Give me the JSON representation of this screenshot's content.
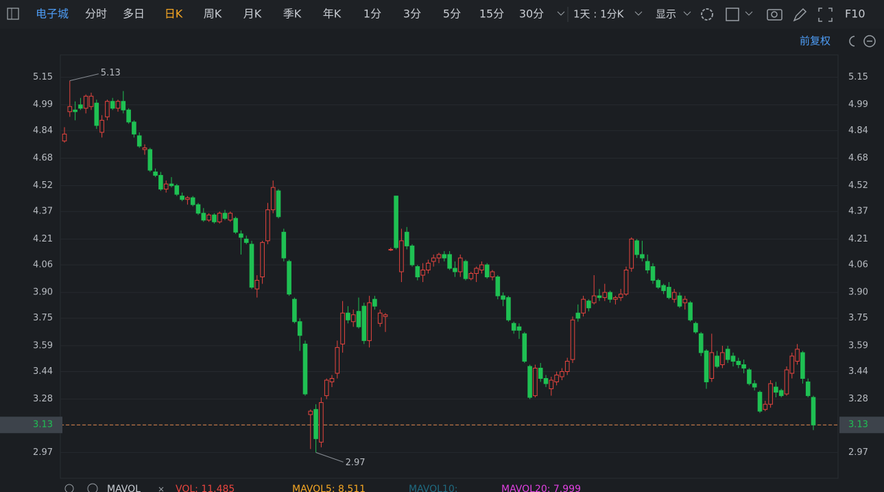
{
  "toolbar": {
    "stock": "电子城",
    "periods": [
      "分时",
      "多日",
      "日K",
      "周K",
      "月K",
      "季K",
      "年K",
      "1分",
      "3分",
      "5分",
      "15分",
      "30分"
    ],
    "active_period": 2,
    "interval": "1天 : 1分K",
    "display": "显示",
    "f10": "F10"
  },
  "adjust": "前复权",
  "chart_data": {
    "type": "candlestick",
    "ylim": [
      2.82,
      5.28
    ],
    "yticks": [
      5.15,
      4.99,
      4.84,
      4.68,
      4.52,
      4.37,
      4.21,
      4.06,
      {
        "value": 3.9,
        "label": "3.90"
      },
      3.75,
      3.59,
      3.44,
      3.28,
      3.13,
      2.97
    ],
    "grid": true,
    "up_color": "#e9453f",
    "down_color": "#1fc053",
    "max_label": 5.13,
    "min_label": 2.97,
    "last_price": 3.13,
    "candles": [
      [
        4.78,
        4.86,
        4.77,
        4.82
      ],
      [
        4.95,
        5.13,
        4.92,
        4.98
      ],
      [
        4.96,
        5.01,
        4.9,
        4.95
      ],
      [
        4.99,
        5.03,
        4.96,
        4.97
      ],
      [
        4.97,
        5.05,
        4.94,
        5.04
      ],
      [
        4.98,
        5.06,
        4.96,
        5.04
      ],
      [
        5.0,
        5.02,
        4.85,
        4.87
      ],
      [
        4.83,
        4.93,
        4.8,
        4.9
      ],
      [
        4.92,
        5.02,
        4.9,
        5.01
      ],
      [
        5.01,
        5.03,
        4.96,
        4.97
      ],
      [
        4.97,
        5.02,
        4.95,
        5.01
      ],
      [
        5.01,
        5.07,
        4.94,
        4.96
      ],
      [
        4.96,
        4.97,
        4.88,
        4.89
      ],
      [
        4.89,
        4.9,
        4.8,
        4.82
      ],
      [
        4.81,
        4.83,
        4.74,
        4.75
      ],
      [
        4.73,
        4.76,
        4.7,
        4.74
      ],
      [
        4.73,
        4.74,
        4.6,
        4.61
      ],
      [
        4.6,
        4.62,
        4.57,
        4.58
      ],
      [
        4.58,
        4.6,
        4.49,
        4.5
      ],
      [
        4.5,
        4.55,
        4.48,
        4.53
      ],
      [
        4.53,
        4.57,
        4.51,
        4.52
      ],
      [
        4.52,
        4.53,
        4.46,
        4.47
      ],
      [
        4.46,
        4.48,
        4.43,
        4.44
      ],
      [
        4.44,
        4.46,
        4.41,
        4.45
      ],
      [
        4.45,
        4.46,
        4.4,
        4.41
      ],
      [
        4.41,
        4.42,
        4.35,
        4.36
      ],
      [
        4.36,
        4.39,
        4.31,
        4.32
      ],
      [
        4.32,
        4.36,
        4.31,
        4.35
      ],
      [
        4.35,
        4.36,
        4.3,
        4.31
      ],
      [
        4.31,
        4.37,
        4.3,
        4.36
      ],
      [
        4.36,
        4.38,
        4.32,
        4.33
      ],
      [
        4.32,
        4.37,
        4.31,
        4.36
      ],
      [
        4.33,
        4.34,
        4.24,
        4.25
      ],
      [
        4.24,
        4.26,
        4.12,
        4.22
      ],
      [
        4.21,
        4.23,
        4.18,
        4.19
      ],
      [
        4.18,
        4.2,
        3.92,
        3.93
      ],
      [
        3.92,
        4.0,
        3.87,
        3.97
      ],
      [
        3.99,
        4.2,
        3.95,
        4.19
      ],
      [
        4.2,
        4.42,
        4.18,
        4.38
      ],
      [
        4.38,
        4.55,
        4.36,
        4.51
      ],
      [
        4.49,
        4.5,
        4.33,
        4.34
      ],
      [
        4.25,
        4.27,
        4.08,
        4.1
      ],
      [
        4.08,
        4.09,
        3.88,
        3.89
      ],
      [
        3.86,
        3.87,
        3.72,
        3.73
      ],
      [
        3.73,
        3.75,
        3.56,
        3.65
      ],
      [
        3.6,
        3.62,
        3.3,
        3.31
      ],
      [
        3.19,
        3.22,
        2.99,
        3.21
      ],
      [
        3.22,
        3.25,
        2.97,
        3.05
      ],
      [
        3.03,
        3.29,
        3.0,
        3.26
      ],
      [
        3.3,
        3.4,
        3.28,
        3.39
      ],
      [
        3.38,
        3.42,
        3.35,
        3.4
      ],
      [
        3.43,
        3.62,
        3.4,
        3.58
      ],
      [
        3.6,
        3.85,
        3.55,
        3.78
      ],
      [
        3.78,
        3.82,
        3.72,
        3.74
      ],
      [
        3.73,
        3.8,
        3.7,
        3.77
      ],
      [
        3.79,
        3.87,
        3.69,
        3.7
      ],
      [
        3.82,
        3.84,
        3.6,
        3.62
      ],
      [
        3.62,
        3.88,
        3.58,
        3.84
      ],
      [
        3.86,
        3.88,
        3.8,
        3.82
      ],
      [
        3.72,
        3.8,
        3.7,
        3.78
      ],
      [
        3.76,
        3.78,
        3.67,
        3.77
      ],
      [
        4.15,
        4.16,
        4.14,
        4.15
      ],
      [
        4.46,
        4.46,
        4.15,
        4.16
      ],
      [
        4.02,
        4.27,
        3.96,
        4.2
      ],
      [
        4.25,
        4.28,
        4.15,
        4.17
      ],
      [
        4.17,
        4.18,
        4.05,
        4.06
      ],
      [
        4.05,
        4.06,
        3.97,
        3.99
      ],
      [
        4.0,
        4.07,
        3.96,
        4.03
      ],
      [
        4.03,
        4.09,
        4.01,
        4.07
      ],
      [
        4.08,
        4.12,
        4.05,
        4.1
      ],
      [
        4.1,
        4.13,
        4.07,
        4.12
      ],
      [
        4.12,
        4.14,
        4.08,
        4.1
      ],
      [
        4.12,
        4.14,
        4.03,
        4.04
      ],
      [
        4.04,
        4.08,
        3.99,
        4.02
      ],
      [
        4.02,
        4.12,
        3.99,
        4.1
      ],
      [
        4.08,
        4.09,
        3.97,
        3.98
      ],
      [
        3.98,
        4.02,
        3.97,
        4.01
      ],
      [
        4.01,
        4.05,
        3.96,
        4.04
      ],
      [
        4.03,
        4.08,
        4.01,
        4.06
      ],
      [
        4.06,
        4.07,
        3.98,
        3.99
      ],
      [
        3.99,
        4.03,
        3.97,
        4.02
      ],
      [
        3.99,
        4.0,
        3.86,
        3.88
      ],
      [
        3.88,
        3.9,
        3.82,
        3.86
      ],
      [
        3.87,
        3.88,
        3.73,
        3.74
      ],
      [
        3.72,
        3.73,
        3.66,
        3.68
      ],
      [
        3.7,
        3.72,
        3.63,
        3.68
      ],
      [
        3.66,
        3.67,
        3.49,
        3.5
      ],
      [
        3.47,
        3.48,
        3.28,
        3.29
      ],
      [
        3.3,
        3.48,
        3.29,
        3.46
      ],
      [
        3.46,
        3.49,
        3.38,
        3.4
      ],
      [
        3.4,
        3.42,
        3.35,
        3.37
      ],
      [
        3.34,
        3.41,
        3.3,
        3.39
      ],
      [
        3.38,
        3.44,
        3.36,
        3.42
      ],
      [
        3.41,
        3.46,
        3.39,
        3.44
      ],
      [
        3.44,
        3.52,
        3.42,
        3.5
      ],
      [
        3.51,
        3.76,
        3.49,
        3.74
      ],
      [
        3.78,
        3.83,
        3.73,
        3.75
      ],
      [
        3.78,
        3.88,
        3.76,
        3.86
      ],
      [
        3.85,
        3.86,
        3.79,
        3.81
      ],
      [
        3.84,
        4.0,
        3.83,
        3.88
      ],
      [
        3.88,
        3.92,
        3.85,
        3.87
      ],
      [
        3.87,
        3.95,
        3.85,
        3.9
      ],
      [
        3.9,
        3.91,
        3.84,
        3.86
      ],
      [
        3.86,
        3.88,
        3.83,
        3.87
      ],
      [
        3.87,
        3.92,
        3.85,
        3.89
      ],
      [
        3.89,
        4.05,
        3.88,
        4.03
      ],
      [
        4.04,
        4.22,
        4.02,
        4.21
      ],
      [
        4.2,
        4.21,
        4.1,
        4.12
      ],
      [
        4.12,
        4.2,
        4.08,
        4.1
      ],
      [
        4.08,
        4.12,
        4.01,
        4.03
      ],
      [
        4.05,
        4.07,
        3.95,
        3.97
      ],
      [
        3.97,
        3.98,
        3.92,
        3.93
      ],
      [
        3.94,
        3.95,
        3.89,
        3.91
      ],
      [
        3.93,
        3.96,
        3.86,
        3.87
      ],
      [
        3.86,
        3.92,
        3.84,
        3.9
      ],
      [
        3.88,
        3.9,
        3.81,
        3.82
      ],
      [
        3.84,
        3.88,
        3.8,
        3.86
      ],
      [
        3.84,
        3.85,
        3.73,
        3.74
      ],
      [
        3.72,
        3.73,
        3.66,
        3.67
      ],
      [
        3.66,
        3.67,
        3.53,
        3.55
      ],
      [
        3.56,
        3.57,
        3.34,
        3.38
      ],
      [
        3.4,
        3.66,
        3.38,
        3.55
      ],
      [
        3.53,
        3.56,
        3.46,
        3.47
      ],
      [
        3.48,
        3.59,
        3.46,
        3.55
      ],
      [
        3.57,
        3.59,
        3.49,
        3.51
      ],
      [
        3.53,
        3.55,
        3.47,
        3.5
      ],
      [
        3.5,
        3.52,
        3.46,
        3.48
      ],
      [
        3.48,
        3.51,
        3.43,
        3.46
      ],
      [
        3.45,
        3.46,
        3.36,
        3.37
      ],
      [
        3.37,
        3.39,
        3.33,
        3.35
      ],
      [
        3.32,
        3.33,
        3.2,
        3.21
      ],
      [
        3.22,
        3.27,
        3.21,
        3.25
      ],
      [
        3.25,
        3.39,
        3.23,
        3.37
      ],
      [
        3.35,
        3.38,
        3.29,
        3.32
      ],
      [
        3.33,
        3.34,
        3.29,
        3.3
      ],
      [
        3.31,
        3.47,
        3.3,
        3.45
      ],
      [
        3.43,
        3.55,
        3.4,
        3.53
      ],
      [
        3.5,
        3.6,
        3.48,
        3.57
      ],
      [
        3.55,
        3.56,
        3.37,
        3.4
      ],
      [
        3.38,
        3.4,
        3.29,
        3.3
      ],
      [
        3.29,
        3.3,
        3.1,
        3.13
      ]
    ]
  },
  "indicators": {
    "name": "MAVOL",
    "items": [
      {
        "text": "VOL: 11.485",
        "color": "#e9453f"
      },
      {
        "text": "MAVOL5: 8.511",
        "color": "#f5a623"
      },
      {
        "text": "MAVOL10:",
        "color": "#1f6a80"
      },
      {
        "text": "MAVOL20: 7.999",
        "color": "#e040e0"
      }
    ]
  }
}
